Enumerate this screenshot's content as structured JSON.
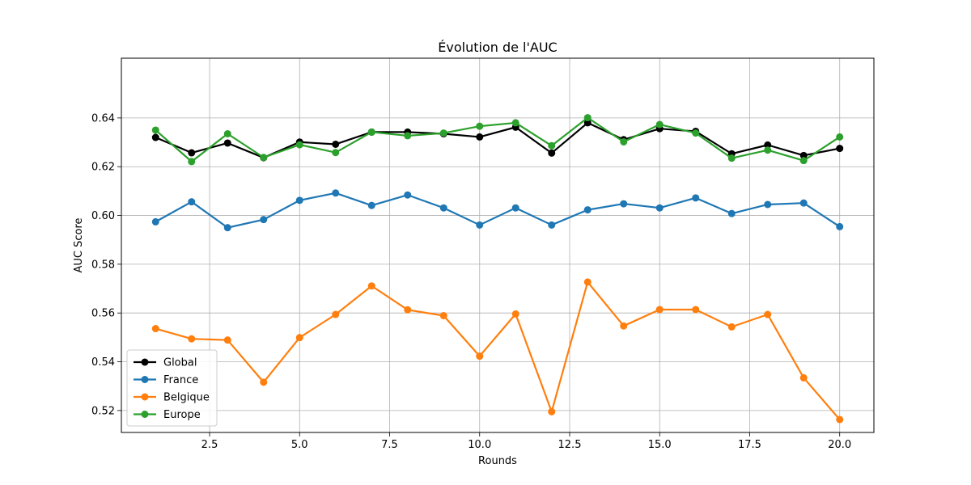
{
  "chart_data": {
    "type": "line",
    "title": "Évolution de l'AUC",
    "xlabel": "Rounds",
    "ylabel": "AUC Score",
    "xlim": [
      0.05,
      20.95
    ],
    "ylim": [
      0.511,
      0.6645
    ],
    "xticks": [
      2.5,
      5.0,
      7.5,
      10.0,
      12.5,
      15.0,
      17.5,
      20.0
    ],
    "xtick_labels": [
      "2.5",
      "5.0",
      "7.5",
      "10.0",
      "12.5",
      "15.0",
      "17.5",
      "20.0"
    ],
    "yticks": [
      0.52,
      0.54,
      0.56,
      0.58,
      0.6,
      0.62,
      0.64
    ],
    "ytick_labels": [
      "0.52",
      "0.54",
      "0.56",
      "0.58",
      "0.60",
      "0.62",
      "0.64"
    ],
    "grid": true,
    "legend_position": "lower-left",
    "x": [
      1,
      2,
      3,
      4,
      5,
      6,
      7,
      8,
      9,
      10,
      11,
      12,
      13,
      14,
      15,
      16,
      17,
      18,
      19,
      20
    ],
    "series": [
      {
        "name": "Global",
        "color": "#000000",
        "values": [
          0.632,
          0.6257,
          0.6297,
          0.6237,
          0.6301,
          0.6292,
          0.6342,
          0.6342,
          0.6335,
          0.6322,
          0.6362,
          0.6256,
          0.638,
          0.6311,
          0.6356,
          0.6345,
          0.6253,
          0.6289,
          0.6246,
          0.6275
        ]
      },
      {
        "name": "France",
        "color": "#1f77b4",
        "values": [
          0.5974,
          0.6056,
          0.595,
          0.5983,
          0.6062,
          0.6092,
          0.6041,
          0.6084,
          0.6031,
          0.5961,
          0.6031,
          0.5961,
          0.6023,
          0.6048,
          0.6031,
          0.6072,
          0.6008,
          0.6045,
          0.6051,
          0.5954
        ]
      },
      {
        "name": "Belgique",
        "color": "#ff7f0e",
        "values": [
          0.5536,
          0.5494,
          0.5489,
          0.5316,
          0.5499,
          0.5594,
          0.5711,
          0.5613,
          0.5589,
          0.5423,
          0.5596,
          0.5195,
          0.5727,
          0.5547,
          0.5614,
          0.5614,
          0.5543,
          0.5594,
          0.5334,
          0.5163
        ]
      },
      {
        "name": "Europe",
        "color": "#2ca02c",
        "values": [
          0.635,
          0.6221,
          0.6335,
          0.6238,
          0.629,
          0.6258,
          0.6342,
          0.6327,
          0.6338,
          0.6366,
          0.638,
          0.6286,
          0.6401,
          0.6302,
          0.6373,
          0.6338,
          0.6235,
          0.6268,
          0.6225,
          0.6322
        ]
      }
    ]
  }
}
